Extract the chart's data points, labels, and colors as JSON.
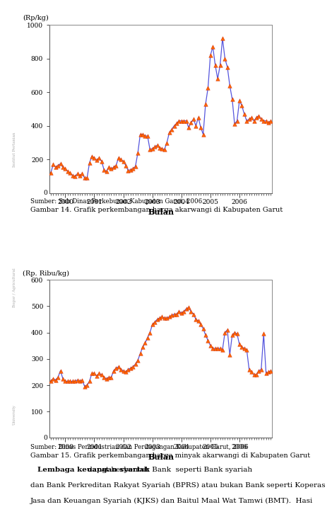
{
  "chart1": {
    "ylabel": "(Rp/kg)",
    "xlabel": "Bulan",
    "ylim": [
      0,
      1000
    ],
    "yticks": [
      200,
      400,
      600,
      800,
      1000
    ],
    "line_color": "#5555dd",
    "marker_color": "#ff6600",
    "marker_edge": "#cc2200",
    "data": [
      120,
      170,
      155,
      165,
      175,
      155,
      145,
      130,
      120,
      105,
      100,
      115,
      105,
      115,
      90,
      90,
      180,
      220,
      210,
      195,
      210,
      190,
      140,
      130,
      155,
      145,
      155,
      165,
      210,
      200,
      190,
      165,
      135,
      140,
      145,
      160,
      240,
      350,
      350,
      340,
      340,
      260,
      265,
      275,
      285,
      270,
      265,
      260,
      300,
      360,
      380,
      400,
      415,
      430,
      430,
      430,
      430,
      390,
      420,
      440,
      400,
      450,
      390,
      350,
      530,
      625,
      820,
      870,
      760,
      680,
      760,
      920,
      800,
      750,
      640,
      560,
      410,
      430,
      550,
      520,
      470,
      430,
      440,
      450,
      430,
      450,
      460,
      440,
      430,
      430,
      420,
      430
    ]
  },
  "chart2": {
    "ylabel": "(Rp. Ribu/kg)",
    "xlabel": "Bulan",
    "ylim": [
      0,
      600
    ],
    "yticks": [
      100,
      200,
      300,
      400,
      500,
      600
    ],
    "line_color": "#5555dd",
    "marker_color": "#ff6600",
    "marker_edge": "#cc2200",
    "data": [
      215,
      225,
      220,
      230,
      255,
      225,
      215,
      215,
      215,
      215,
      215,
      220,
      215,
      220,
      195,
      200,
      215,
      245,
      245,
      235,
      245,
      240,
      230,
      225,
      230,
      230,
      255,
      265,
      270,
      260,
      255,
      250,
      260,
      265,
      270,
      280,
      295,
      320,
      345,
      360,
      380,
      400,
      430,
      440,
      450,
      455,
      460,
      455,
      455,
      460,
      465,
      470,
      470,
      480,
      475,
      480,
      490,
      495,
      480,
      470,
      450,
      445,
      430,
      415,
      390,
      370,
      350,
      340,
      340,
      340,
      340,
      335,
      400,
      410,
      315,
      390,
      400,
      395,
      355,
      345,
      340,
      335,
      260,
      250,
      240,
      240,
      255,
      260,
      395,
      245,
      250,
      255
    ]
  },
  "year_labels": [
    "2000",
    "2001",
    "2002",
    "2003",
    "2004",
    "2005",
    "2006"
  ],
  "year_positions": [
    6,
    18,
    30,
    42,
    54,
    66,
    78
  ],
  "source1": "Sumber: Sub Dinas Perkebunan Kabupaten Garut, 2006.",
  "caption1": "Gambar 14. Grafik perkembangan harga akarwangi di Kabupaten Garut",
  "source2": "Sumber: Dinas Perindustrian dan Perdagangan Kabupaten Garut, 2006",
  "caption2": "Gambar 15. Grafik perkembangan harga minyak akarwangi di Kabupaten Garut",
  "bold_text": "Lembaga keuangan syariah",
  "line1_rest": " dapat berbentuk Bank  seperti Bank syariah",
  "line2": "dan Bank Perkreditan Rakyat Syariah (BPRS) atau bukan Bank seperti Koperas",
  "line3": "Jasa dan Keuangan Syariah (KJKS) dan Baitul Maal Wat Tamwi (BMT).  Hasi",
  "bg_color": "#ffffff",
  "left_strip_color": "#dddddd",
  "chart_box_color": "#888888"
}
